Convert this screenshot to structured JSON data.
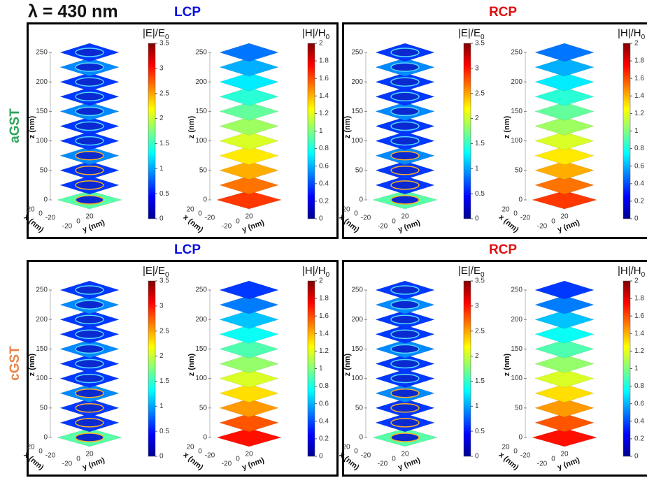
{
  "title": "λ = 430 nm",
  "rows": [
    {
      "label": "aGST",
      "panels": [
        {
          "heading": "LCP"
        },
        {
          "heading": "RCP"
        }
      ]
    },
    {
      "label": "cGST",
      "panels": [
        {
          "heading": "LCP"
        },
        {
          "heading": "RCP"
        }
      ]
    }
  ],
  "plots": [
    {
      "quantity": {
        "text": "|E|/E",
        "sub": "0"
      },
      "colorbar_ticks": [
        0,
        0.5,
        1,
        1.5,
        2,
        2.5,
        3,
        3.5
      ]
    },
    {
      "quantity": {
        "text": "|H|/H",
        "sub": "0"
      },
      "colorbar_ticks": [
        0,
        0.2,
        0.4,
        0.6,
        0.8,
        1,
        1.2,
        1.4,
        1.6,
        1.8,
        2
      ]
    }
  ],
  "axes": {
    "z_label": "z (nm)",
    "z_ticks": [
      0,
      50,
      100,
      150,
      200,
      250
    ],
    "x_label": "x (nm)",
    "x_ticks": [
      20,
      0,
      -20
    ],
    "y_label": "y (nm)",
    "y_ticks": [
      -20,
      0,
      20
    ]
  }
}
